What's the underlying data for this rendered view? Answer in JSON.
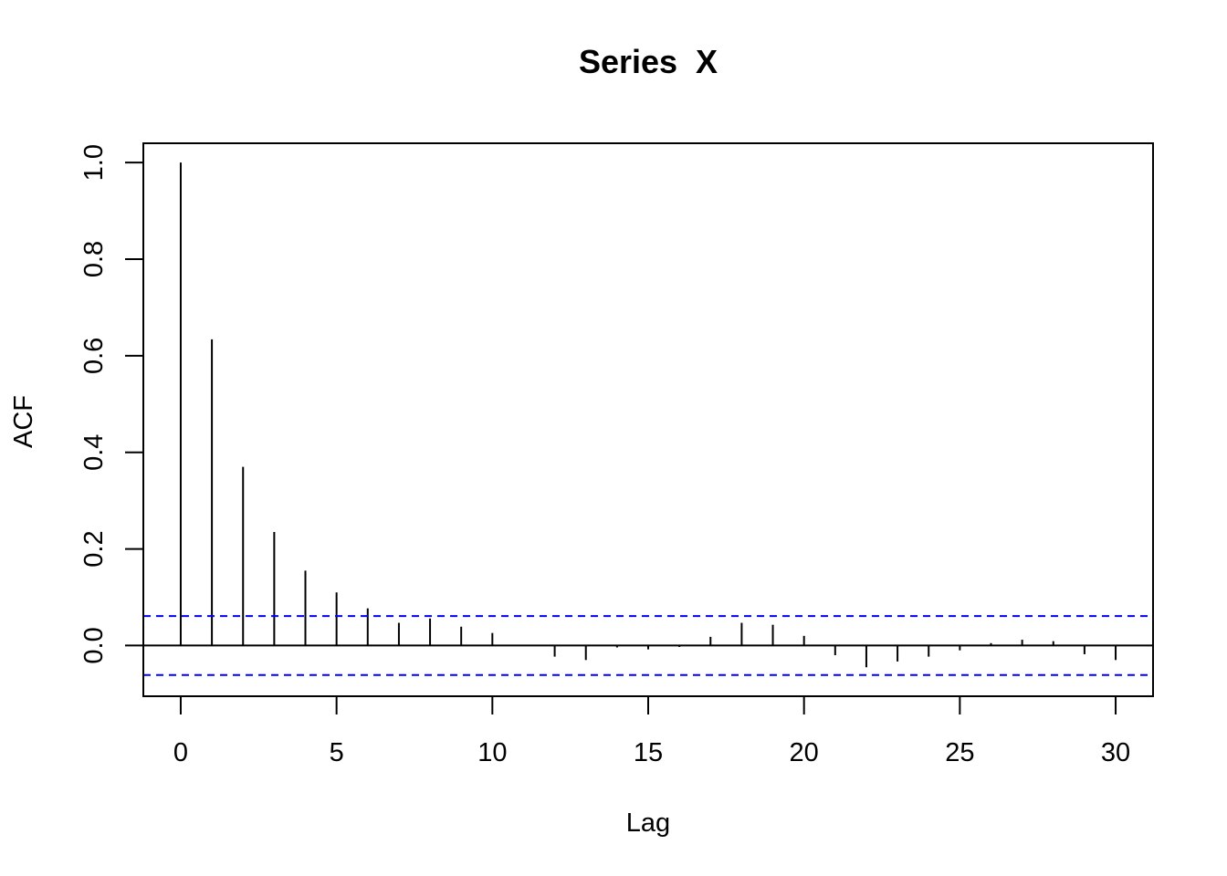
{
  "chart_data": {
    "type": "bar",
    "title": "Series  X",
    "xlabel": "Lag",
    "ylabel": "ACF",
    "xlim": [
      -1.2,
      31.2
    ],
    "ylim": [
      -0.105,
      1.04
    ],
    "x_ticks": [
      0,
      5,
      10,
      15,
      20,
      25,
      30
    ],
    "x_tick_labels": [
      "0",
      "5",
      "10",
      "15",
      "20",
      "25",
      "30"
    ],
    "y_ticks": [
      0.0,
      0.2,
      0.4,
      0.6,
      0.8,
      1.0
    ],
    "y_tick_labels": [
      "0.0",
      "0.2",
      "0.4",
      "0.6",
      "0.8",
      "1.0"
    ],
    "lags": [
      0,
      1,
      2,
      3,
      4,
      5,
      6,
      7,
      8,
      9,
      10,
      11,
      12,
      13,
      14,
      15,
      16,
      17,
      18,
      19,
      20,
      21,
      22,
      23,
      24,
      25,
      26,
      27,
      28,
      29,
      30
    ],
    "acf": [
      1.0,
      0.634,
      0.37,
      0.235,
      0.155,
      0.11,
      0.077,
      0.047,
      0.056,
      0.039,
      0.026,
      0.0,
      -0.023,
      -0.03,
      -0.004,
      -0.008,
      -0.003,
      0.018,
      0.047,
      0.043,
      0.02,
      -0.02,
      -0.045,
      -0.033,
      -0.023,
      -0.01,
      0.005,
      0.012,
      0.009,
      -0.018,
      -0.03
    ],
    "confidence_bound": 0.061,
    "colors": {
      "bars": "#000000",
      "confidence_lines": "#0000FF",
      "frame": "#000000"
    },
    "grid": false,
    "legend": "none"
  }
}
